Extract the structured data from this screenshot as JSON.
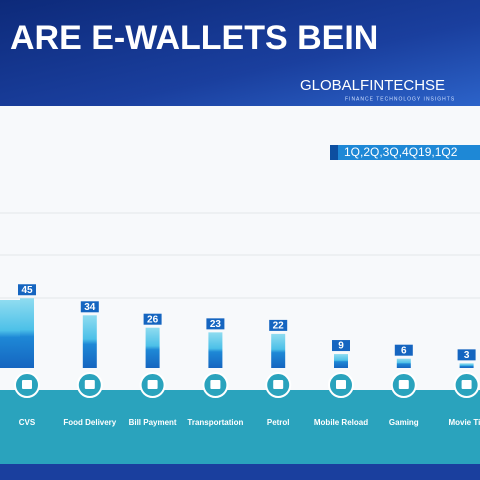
{
  "chart_data": {
    "type": "bar",
    "title": "ARE E-WALLETS BEIN",
    "brand": "GLOBALFINTECHSE",
    "tagline": "FINANCE TECHNOLOGY INSIGHTS",
    "legend": "1Q,2Q,3Q,4Q19,1Q2",
    "categories": [
      "CVS",
      "Food Delivery",
      "Bill Payment",
      "Transportation",
      "Petrol",
      "Mobile Reload",
      "Gaming",
      "Movie Tic"
    ],
    "values": [
      45,
      34,
      26,
      23,
      22,
      9,
      6,
      3
    ],
    "color": "#1e88d6",
    "ylim": [
      0,
      100
    ]
  }
}
